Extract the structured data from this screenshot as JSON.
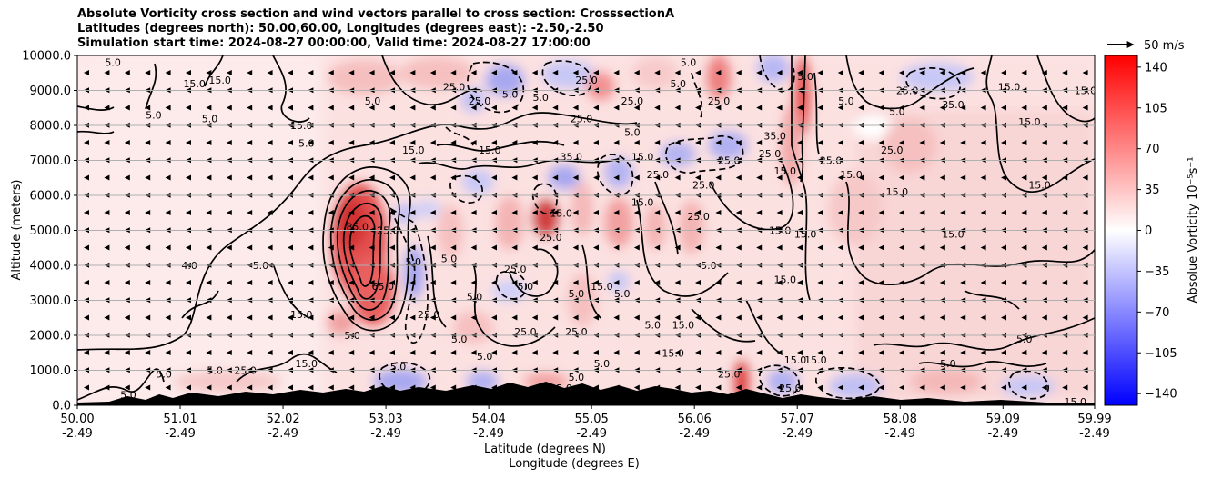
{
  "title_lines": [
    "Absolute Vorticity cross section and wind vectors parallel to cross section: CrosssectionA",
    "Latitudes (degrees north): 50.00,60.00, Longitudes (degrees east): -2.50,-2.50",
    "Simulation start time: 2024-08-27 00:00:00, Valid time: 2024-08-27 17:00:00"
  ],
  "wind_key_label": "50 m/s",
  "chart_data": {
    "type": "heatmap",
    "ylabel": "Altitude (meters)",
    "xlabel_lines": [
      "Latitude (degrees N)",
      "Longitude (degrees E)"
    ],
    "ylim": [
      0,
      10000
    ],
    "y_ticks": [
      "0.0",
      "1000.0",
      "2000.0",
      "3000.0",
      "4000.0",
      "5000.0",
      "6000.0",
      "7000.0",
      "8000.0",
      "9000.0",
      "10000.0"
    ],
    "y_tick_values": [
      0,
      1000,
      2000,
      3000,
      4000,
      5000,
      6000,
      7000,
      8000,
      9000,
      10000
    ],
    "x_tick_lat": [
      "50.00",
      "51.01",
      "52.02",
      "53.03",
      "54.04",
      "55.05",
      "56.06",
      "57.07",
      "58.08",
      "59.09",
      "59.99"
    ],
    "x_tick_lon": [
      "-2.49",
      "-2.49",
      "-2.49",
      "-2.49",
      "-2.49",
      "-2.49",
      "-2.49",
      "-2.49",
      "-2.49",
      "-2.49",
      "-2.49"
    ],
    "x_tick_values": [
      50.0,
      51.01,
      52.02,
      53.03,
      54.04,
      55.05,
      56.06,
      57.07,
      58.08,
      59.09,
      59.99
    ],
    "xlim": [
      50.0,
      59.99
    ],
    "horizontal_grid": true,
    "colorbar": {
      "label": "Absolue Vorticity 10⁻⁵s⁻¹",
      "ticks": [
        "140",
        "105",
        "70",
        "35",
        "0",
        "−35",
        "−70",
        "−105",
        "−140"
      ],
      "tick_values": [
        140,
        105,
        70,
        35,
        0,
        -35,
        -70,
        -105,
        -140
      ],
      "range": [
        -150,
        150
      ],
      "cmap": "bwr"
    },
    "contour_labels": [
      {
        "text": "5.0",
        "lat": 50.35,
        "alt": 9800
      },
      {
        "text": "15.0",
        "lat": 51.15,
        "alt": 9200
      },
      {
        "text": "15.0",
        "lat": 51.4,
        "alt": 9300
      },
      {
        "text": "5.0",
        "lat": 51.3,
        "alt": 8200
      },
      {
        "text": "5.0",
        "lat": 50.75,
        "alt": 8300
      },
      {
        "text": "5.0",
        "lat": 52.9,
        "alt": 8700
      },
      {
        "text": "15.0",
        "lat": 52.2,
        "alt": 8000
      },
      {
        "text": "5.0",
        "lat": 52.25,
        "alt": 7500
      },
      {
        "text": "15.0",
        "lat": 53.3,
        "alt": 7300
      },
      {
        "text": "4.0",
        "lat": 51.1,
        "alt": 4000
      },
      {
        "text": "5.0",
        "lat": 51.8,
        "alt": 4000
      },
      {
        "text": "15.0",
        "lat": 52.2,
        "alt": 2600
      },
      {
        "text": "15.0",
        "lat": 52.25,
        "alt": 1200
      },
      {
        "text": "5.0",
        "lat": 50.85,
        "alt": 900
      },
      {
        "text": "5.0",
        "lat": 51.35,
        "alt": 1000
      },
      {
        "text": "25.0",
        "lat": 51.65,
        "alt": 1000
      },
      {
        "text": "15.0",
        "lat": 51.6,
        "alt": 100
      },
      {
        "text": "5.0",
        "lat": 50.5,
        "alt": 300
      },
      {
        "text": "85.0",
        "lat": 52.75,
        "alt": 5100
      },
      {
        "text": "25.0",
        "lat": 53.05,
        "alt": 5000
      },
      {
        "text": "65.0",
        "lat": 53.0,
        "alt": 3400
      },
      {
        "text": "5.0",
        "lat": 53.3,
        "alt": 4100
      },
      {
        "text": "5.0",
        "lat": 52.7,
        "alt": 2000
      },
      {
        "text": "5.0",
        "lat": 53.15,
        "alt": 1100
      },
      {
        "text": "5.0",
        "lat": 53.75,
        "alt": 1900
      },
      {
        "text": "5.0",
        "lat": 54.0,
        "alt": 1400
      },
      {
        "text": "25.0",
        "lat": 53.7,
        "alt": 9100
      },
      {
        "text": "25.0",
        "lat": 53.95,
        "alt": 8700
      },
      {
        "text": "5.0",
        "lat": 54.25,
        "alt": 8900
      },
      {
        "text": "15.0",
        "lat": 54.05,
        "alt": 7300
      },
      {
        "text": "25.0",
        "lat": 53.45,
        "alt": 2600
      },
      {
        "text": "5.0",
        "lat": 53.65,
        "alt": 4200
      },
      {
        "text": "5.0",
        "lat": 53.9,
        "alt": 3100
      },
      {
        "text": "5.0",
        "lat": 54.4,
        "alt": 3400
      },
      {
        "text": "25.0",
        "lat": 54.3,
        "alt": 3900
      },
      {
        "text": "25.0",
        "lat": 54.4,
        "alt": 2100
      },
      {
        "text": "5.0",
        "lat": 54.9,
        "alt": 3200
      },
      {
        "text": "25.0",
        "lat": 54.65,
        "alt": 4800
      },
      {
        "text": "15.0",
        "lat": 54.75,
        "alt": 5500
      },
      {
        "text": "35.0",
        "lat": 54.85,
        "alt": 7100
      },
      {
        "text": "25.0",
        "lat": 54.95,
        "alt": 8200
      },
      {
        "text": "5.0",
        "lat": 54.55,
        "alt": 8800
      },
      {
        "text": "25.0",
        "lat": 55.0,
        "alt": 9300
      },
      {
        "text": "15.0",
        "lat": 55.15,
        "alt": 3400
      },
      {
        "text": "5.0",
        "lat": 55.35,
        "alt": 3200
      },
      {
        "text": "25.0",
        "lat": 54.9,
        "alt": 2100
      },
      {
        "text": "5.0",
        "lat": 55.15,
        "alt": 1200
      },
      {
        "text": "5.0",
        "lat": 54.9,
        "alt": 800
      },
      {
        "text": "25.0",
        "lat": 54.75,
        "alt": 500
      },
      {
        "text": "25.0",
        "lat": 55.45,
        "alt": 8700
      },
      {
        "text": "5.0",
        "lat": 55.45,
        "alt": 7800
      },
      {
        "text": "15.0",
        "lat": 55.55,
        "alt": 7100
      },
      {
        "text": "25.0",
        "lat": 55.7,
        "alt": 6600
      },
      {
        "text": "15.0",
        "lat": 55.55,
        "alt": 5800
      },
      {
        "text": "5.0",
        "lat": 55.65,
        "alt": 2300
      },
      {
        "text": "15.0",
        "lat": 55.95,
        "alt": 2300
      },
      {
        "text": "25.0",
        "lat": 56.1,
        "alt": 5400
      },
      {
        "text": "5.0",
        "lat": 56.2,
        "alt": 4000
      },
      {
        "text": "25.0",
        "lat": 56.15,
        "alt": 6300
      },
      {
        "text": "25.0",
        "lat": 56.4,
        "alt": 7000
      },
      {
        "text": "25.0",
        "lat": 56.3,
        "alt": 8700
      },
      {
        "text": "5.0",
        "lat": 55.9,
        "alt": 9200
      },
      {
        "text": "5.0",
        "lat": 56.0,
        "alt": 9800
      },
      {
        "text": "15.0",
        "lat": 55.85,
        "alt": 1500
      },
      {
        "text": "25.0",
        "lat": 56.4,
        "alt": 900
      },
      {
        "text": "25.0",
        "lat": 56.8,
        "alt": 7200
      },
      {
        "text": "35.0",
        "lat": 56.85,
        "alt": 7700
      },
      {
        "text": "5.0",
        "lat": 57.15,
        "alt": 9400
      },
      {
        "text": "15.0",
        "lat": 56.95,
        "alt": 6700
      },
      {
        "text": "15.0",
        "lat": 56.9,
        "alt": 5000
      },
      {
        "text": "15.0",
        "lat": 57.15,
        "alt": 4900
      },
      {
        "text": "15.0",
        "lat": 56.95,
        "alt": 3600
      },
      {
        "text": "15.0",
        "lat": 57.05,
        "alt": 1300
      },
      {
        "text": "15.0",
        "lat": 57.25,
        "alt": 1300
      },
      {
        "text": "25.0",
        "lat": 57.0,
        "alt": 500
      },
      {
        "text": "25.0",
        "lat": 57.4,
        "alt": 7000
      },
      {
        "text": "5.0",
        "lat": 57.55,
        "alt": 8700
      },
      {
        "text": "15.0",
        "lat": 57.6,
        "alt": 6600
      },
      {
        "text": "5.0",
        "lat": 58.05,
        "alt": 8400
      },
      {
        "text": "25.0",
        "lat": 58.15,
        "alt": 9000
      },
      {
        "text": "35.0",
        "lat": 58.6,
        "alt": 8600
      },
      {
        "text": "15.0",
        "lat": 58.6,
        "alt": 4900
      },
      {
        "text": "15.0",
        "lat": 58.05,
        "alt": 6100
      },
      {
        "text": "25.0",
        "lat": 58.0,
        "alt": 7300
      },
      {
        "text": "5.0",
        "lat": 58.55,
        "alt": 1200
      },
      {
        "text": "15.0",
        "lat": 59.15,
        "alt": 9100
      },
      {
        "text": "15.0",
        "lat": 59.35,
        "alt": 8100
      },
      {
        "text": "15.0",
        "lat": 59.45,
        "alt": 6300
      },
      {
        "text": "15.0",
        "lat": 59.9,
        "alt": 9000
      },
      {
        "text": "5.0",
        "lat": 59.3,
        "alt": 1900
      },
      {
        "text": "15.0",
        "lat": 59.8,
        "alt": 100
      }
    ]
  }
}
